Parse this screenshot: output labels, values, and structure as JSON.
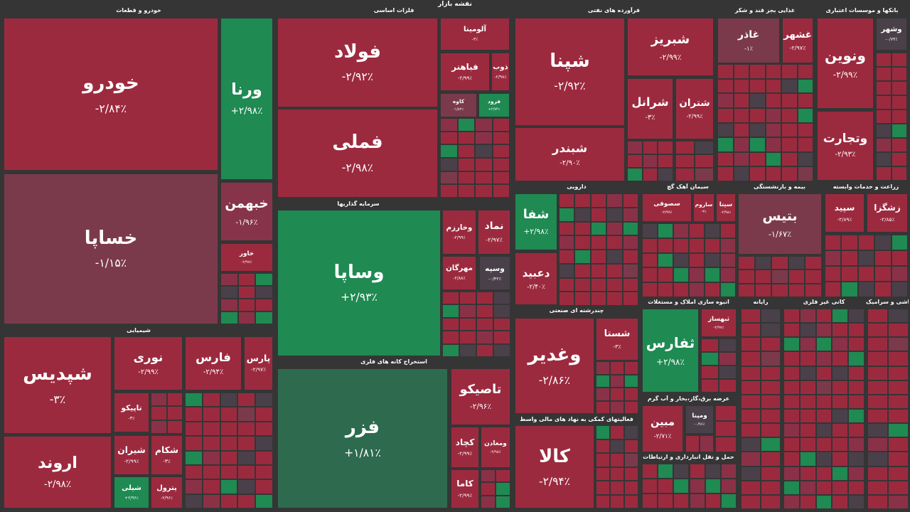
{
  "header": {
    "title": "نقشه بازار"
  },
  "sectors": [
    {
      "title": "خودرو و قطعات",
      "tiles": [
        {
          "name": "خودرو",
          "change": "-۲/۸۴٪",
          "color": "#9c2a3f"
        },
        {
          "name": "خساپا",
          "change": "-۱/۱۵٪",
          "color": "#7b3a4c"
        },
        {
          "name": "ورنا",
          "change": "+۲/۹۸٪",
          "color": "#1f8a52"
        },
        {
          "name": "خبهمن",
          "change": "-۱/۹۶٪",
          "color": "#87344a"
        },
        {
          "name": "خاور",
          "change": "-۲/۹۷٪",
          "color": "#9c2a3f"
        }
      ]
    },
    {
      "title": "شیمیایی",
      "tiles": [
        {
          "name": "شپدیس",
          "change": "-۳٪",
          "color": "#9c2a3f"
        },
        {
          "name": "اروند",
          "change": "-۲/۹۸٪",
          "color": "#9c2a3f"
        },
        {
          "name": "نوری",
          "change": "-۲/۹۹٪",
          "color": "#9c2a3f"
        },
        {
          "name": "فارس",
          "change": "-۲/۹۴٪",
          "color": "#9c2a3f"
        },
        {
          "name": "پارس",
          "change": "-۲/۹۷٪",
          "color": "#9c2a3f"
        },
        {
          "name": "تاپیکو",
          "change": "-۳٪",
          "color": "#9c2a3f"
        },
        {
          "name": "شیران",
          "change": "-۲/۹۹٪",
          "color": "#9c2a3f"
        },
        {
          "name": "شیلی",
          "change": "+۲/۹۶٪",
          "color": "#1f8a52"
        },
        {
          "name": "شکام",
          "change": "-۳٪",
          "color": "#9c2a3f"
        },
        {
          "name": "پترول",
          "change": "-۲/۹۶٪",
          "color": "#9c2a3f"
        }
      ]
    },
    {
      "title": "فلزات اساسی",
      "tiles": [
        {
          "name": "فولاد",
          "change": "-۲/۹۲٪",
          "color": "#9c2a3f"
        },
        {
          "name": "فملی",
          "change": "-۲/۹۸٪",
          "color": "#9c2a3f"
        },
        {
          "name": "آلومینا",
          "change": "-۳٪",
          "color": "#9c2a3f"
        },
        {
          "name": "فباهنر",
          "change": "-۲/۹۹٪",
          "color": "#9c2a3f"
        },
        {
          "name": "ذوب",
          "change": "-۲/۹۸٪",
          "color": "#9c2a3f"
        },
        {
          "name": "کاوه",
          "change": "-۱/۸۲٪",
          "color": "#7b3a4c"
        },
        {
          "name": "فرود",
          "change": "+۲/۷۴٪",
          "color": "#1f8a52"
        }
      ]
    },
    {
      "title": "سرمایه گذاریها",
      "tiles": [
        {
          "name": "وساپا",
          "change": "+۲/۹۳٪",
          "color": "#1f8a52"
        },
        {
          "name": "وخارزم",
          "change": "-۲/۹۹٪",
          "color": "#9c2a3f"
        },
        {
          "name": "نماد",
          "change": "-۲/۹۷٪",
          "color": "#9c2a3f"
        },
        {
          "name": "مهرگان",
          "change": "-۲/۸۸٪",
          "color": "#9c2a3f"
        },
        {
          "name": "وسپه",
          "change": "-۰/۴۲٪",
          "color": "#4a4049"
        }
      ]
    },
    {
      "title": "استخراج کانه های فلزی",
      "tiles": [
        {
          "name": "فزر",
          "change": "+۱/۸۱٪",
          "color": "#2e6b4e"
        },
        {
          "name": "تاصیکو",
          "change": "-۲/۹۶٪",
          "color": "#9c2a3f"
        },
        {
          "name": "کچاد",
          "change": "-۲/۹۹٪",
          "color": "#9c2a3f"
        },
        {
          "name": "ومعادن",
          "change": "-۲/۹۸٪",
          "color": "#9c2a3f"
        },
        {
          "name": "کاما",
          "change": "-۲/۹۹٪",
          "color": "#9c2a3f"
        }
      ]
    },
    {
      "title": "فرآورده های نفتی",
      "tiles": [
        {
          "name": "شپنا",
          "change": "-۲/۹۲٪",
          "color": "#9c2a3f"
        },
        {
          "name": "شبندر",
          "change": "-۲/۹۰٪",
          "color": "#9c2a3f"
        },
        {
          "name": "شبریز",
          "change": "-۲/۹۹٪",
          "color": "#9c2a3f"
        },
        {
          "name": "شرانل",
          "change": "-۳٪",
          "color": "#9c2a3f"
        },
        {
          "name": "شتران",
          "change": "-۲/۹۹٪",
          "color": "#9c2a3f"
        }
      ]
    },
    {
      "title": "غذایی بجز قند و شکر",
      "tiles": [
        {
          "name": "غاذر",
          "change": "-۱٪",
          "color": "#7b3a4c"
        },
        {
          "name": "غشهر",
          "change": "-۲/۹۷٪",
          "color": "#9c2a3f"
        }
      ]
    },
    {
      "title": "بانکها و موسسات اعتباری",
      "tiles": [
        {
          "name": "ونوین",
          "change": "-۲/۹۹٪",
          "color": "#9c2a3f"
        },
        {
          "name": "وتجارت",
          "change": "-۲/۹۳٪",
          "color": "#9c2a3f"
        },
        {
          "name": "وشهر",
          "change": "-۰/۷۴٪",
          "color": "#4a4049"
        }
      ]
    },
    {
      "title": "دارویی",
      "tiles": [
        {
          "name": "شفا",
          "change": "+۲/۹۸٪",
          "color": "#1f8a52"
        },
        {
          "name": "دعبید",
          "change": "-۲/۴۰٪",
          "color": "#9c2a3f"
        }
      ]
    },
    {
      "title": "سیمان آهک گچ",
      "tiles": [
        {
          "name": "سصوفی",
          "change": "-۲/۹۹٪",
          "color": "#9c2a3f"
        },
        {
          "name": "ساروم",
          "change": "-۳٪",
          "color": "#9c2a3f"
        },
        {
          "name": "سیتا",
          "change": "-۲/۹۸٪",
          "color": "#9c2a3f"
        }
      ]
    },
    {
      "title": "بیمه و بازنشستگی",
      "tiles": [
        {
          "name": "بتیس",
          "change": "-۱/۶۷٪",
          "color": "#7b3a4c"
        }
      ]
    },
    {
      "title": "زراعت و خدمات وابسته",
      "tiles": [
        {
          "name": "سپید",
          "change": "-۲/۸۹٪",
          "color": "#9c2a3f"
        },
        {
          "name": "زشگزا",
          "change": "-۲/۸۵٪",
          "color": "#9c2a3f"
        }
      ]
    },
    {
      "title": "چندرشته ای صنعتی",
      "tiles": [
        {
          "name": "وغدیر",
          "change": "-۲/۸۶٪",
          "color": "#9c2a3f"
        },
        {
          "name": "شستا",
          "change": "-۳٪",
          "color": "#9c2a3f"
        }
      ]
    },
    {
      "title": "فعالیتهای کمکی به نهاد های مالی واسط",
      "tiles": [
        {
          "name": "کالا",
          "change": "-۲/۹۴٪",
          "color": "#9c2a3f"
        }
      ]
    },
    {
      "title": "انبوه سازی املاک و مستغلات",
      "tiles": [
        {
          "name": "ثفارس",
          "change": "+۲/۹۸٪",
          "color": "#1f8a52"
        },
        {
          "name": "ثبهساز",
          "change": "-۲/۹۷٪",
          "color": "#9c2a3f"
        }
      ]
    },
    {
      "title": "عرضه برق،گاز،بخار و آب گرم",
      "tiles": [
        {
          "name": "مبین",
          "change": "-۲/۷۱٪",
          "color": "#9c2a3f"
        },
        {
          "name": "ومپنا",
          "change": "-۰/۹۶٪",
          "color": "#4a4049"
        }
      ]
    },
    {
      "title": "حمل و نقل انبارداری و ارتباطات",
      "tiles": []
    },
    {
      "title": "رایانه",
      "tiles": []
    },
    {
      "title": "کانی غیر فلزی",
      "tiles": []
    },
    {
      "title": "کاشی و سرامیک",
      "tiles": []
    }
  ]
}
